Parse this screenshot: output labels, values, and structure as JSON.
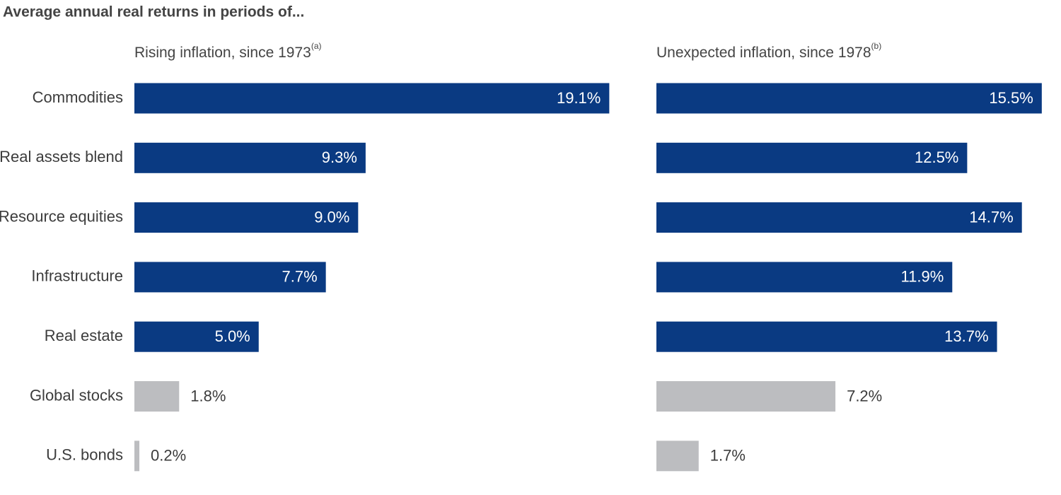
{
  "title": "Average annual real returns in periods of...",
  "chart_data": [
    {
      "type": "hbar",
      "subtitle": "Rising inflation, since 1973",
      "subtitle_note": "(a)",
      "categories": [
        "Commodities",
        "Real assets blend",
        "Resource equities",
        "Infrastructure",
        "Real estate",
        "Global stocks",
        "U.S. bonds"
      ],
      "values": [
        19.1,
        9.3,
        9.0,
        7.7,
        5.0,
        1.8,
        0.2
      ],
      "value_labels": [
        "19.1%",
        "9.3%",
        "9.0%",
        "7.7%",
        "5.0%",
        "1.8%",
        "0.2%"
      ],
      "colors": [
        "#0a3a82",
        "#0a3a82",
        "#0a3a82",
        "#0a3a82",
        "#0a3a82",
        "#bcbdc0",
        "#bcbdc0"
      ],
      "label_positions": [
        "inside",
        "inside",
        "inside",
        "inside",
        "inside",
        "outside",
        "outside"
      ],
      "xlim": [
        0,
        20
      ]
    },
    {
      "type": "hbar",
      "subtitle": "Unexpected inflation, since 1978",
      "subtitle_note": "(b)",
      "values": [
        15.5,
        12.5,
        14.7,
        11.9,
        13.7,
        7.2,
        1.7
      ],
      "value_labels": [
        "15.5%",
        "12.5%",
        "14.7%",
        "11.9%",
        "13.7%",
        "7.2%",
        "1.7%"
      ],
      "colors": [
        "#0a3a82",
        "#0a3a82",
        "#0a3a82",
        "#0a3a82",
        "#0a3a82",
        "#bcbdc0",
        "#bcbdc0"
      ],
      "label_positions": [
        "inside",
        "inside",
        "inside",
        "inside",
        "inside",
        "outside",
        "outside"
      ],
      "xlim": [
        0,
        20
      ]
    }
  ]
}
